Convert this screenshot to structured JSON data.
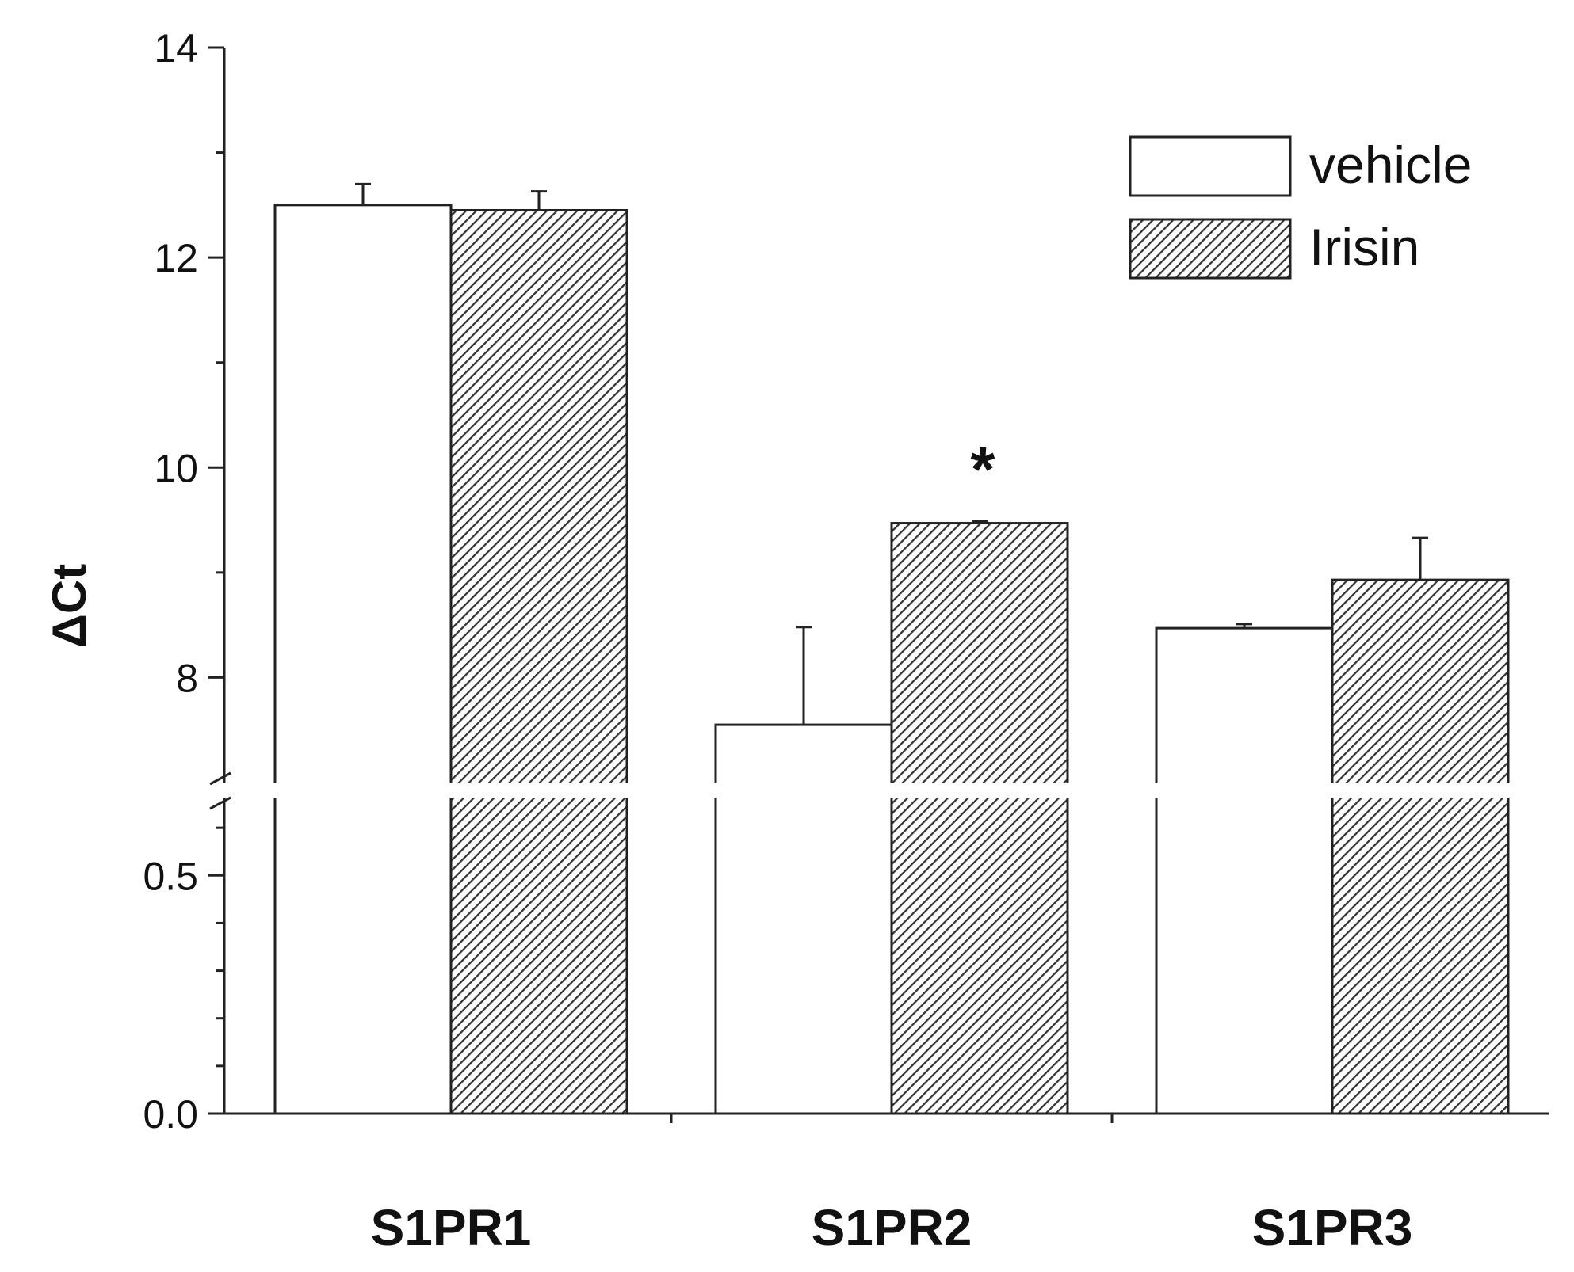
{
  "chart_data": {
    "type": "bar",
    "title": "",
    "xlabel": "",
    "ylabel": "ΔCt",
    "categories": [
      "S1PR1",
      "S1PR2",
      "S1PR3"
    ],
    "series": [
      {
        "name": "vehicle",
        "values": [
          12.5,
          7.55,
          8.47
        ],
        "errors": [
          0.2,
          0.93,
          0.04
        ],
        "fill": "#ffffff",
        "pattern": "none"
      },
      {
        "name": "Irisin",
        "values": [
          12.45,
          9.47,
          8.93
        ],
        "errors": [
          0.18,
          0.02,
          0.4
        ],
        "fill": "#ffffff",
        "pattern": "diagonal-hatch"
      }
    ],
    "y_axis": {
      "broken": true,
      "lower_segment": {
        "range": [
          0.0,
          0.7
        ],
        "ticks": [
          "0.0",
          "0.5"
        ],
        "minor_step": 0.1
      },
      "upper_segment": {
        "range": [
          7.0,
          14.0
        ],
        "ticks": [
          "8",
          "10",
          "12",
          "14"
        ],
        "minor_step": 1
      }
    },
    "annotations": [
      {
        "category": "S1PR2",
        "series": "Irisin",
        "text": "*"
      }
    ],
    "legend": {
      "position": "top-right",
      "entries": [
        "vehicle",
        "Irisin"
      ]
    },
    "grid": false,
    "colors": {
      "axis": "#222222",
      "hatch": "#333333",
      "bar_edge": "#222222"
    }
  }
}
